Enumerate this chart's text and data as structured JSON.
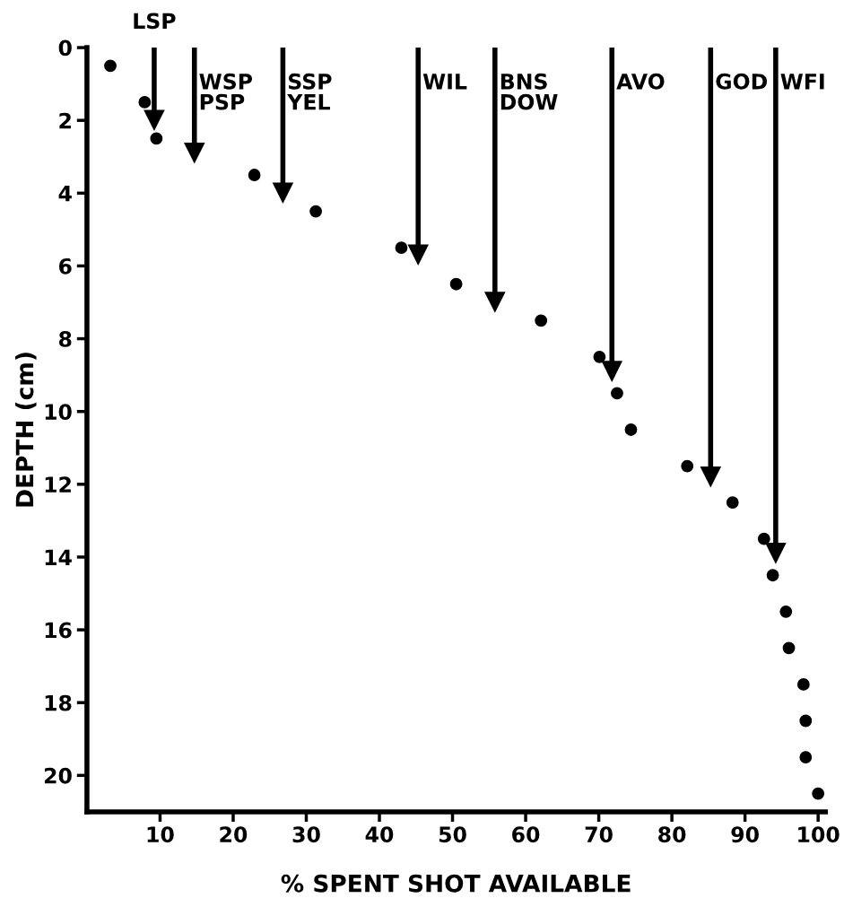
{
  "chart_data": {
    "type": "scatter",
    "xlabel": "% SPENT SHOT AVAILABLE",
    "ylabel": "DEPTH (cm)",
    "series": [
      {
        "color": "#000000",
        "marker": "circle",
        "x": [
          3.2,
          7.9,
          9.5,
          22.9,
          31.3,
          43.0,
          50.5,
          62.1,
          70.1,
          72.5,
          74.4,
          82.1,
          88.3,
          92.6,
          93.8,
          95.6,
          96.0,
          98.0,
          98.3,
          98.3,
          100.0
        ],
        "values": [
          0.5,
          1.5,
          2.5,
          3.5,
          4.5,
          5.5,
          6.5,
          7.5,
          8.5,
          9.5,
          10.5,
          11.5,
          12.5,
          13.5,
          14.5,
          15.5,
          16.5,
          17.5,
          18.5,
          19.5,
          20.5
        ]
      },
      {
        "type": "lollipop",
        "color": "#000000",
        "marker": "triangle",
        "x": [
          9.2,
          14.7,
          26.8,
          45.3,
          55.8,
          71.8,
          85.3,
          94.2
        ],
        "values": [
          2.0,
          2.9,
          4.0,
          5.7,
          7.0,
          8.9,
          11.8,
          13.9
        ]
      }
    ],
    "annotations": [
      "LSP",
      "WSP\nPSP",
      "SSP\nYEL",
      "WIL",
      "BNS\nDOW",
      "AVO",
      "GOD",
      "WFI"
    ],
    "grid": false,
    "xlim": [
      0,
      101
    ],
    "xticks": [
      10,
      20,
      30,
      40,
      50,
      60,
      70,
      80,
      90,
      100
    ],
    "ylim": [
      21,
      0
    ],
    "yticks": [
      0,
      2,
      4,
      6,
      8,
      10,
      12,
      14,
      16,
      18,
      20
    ]
  }
}
